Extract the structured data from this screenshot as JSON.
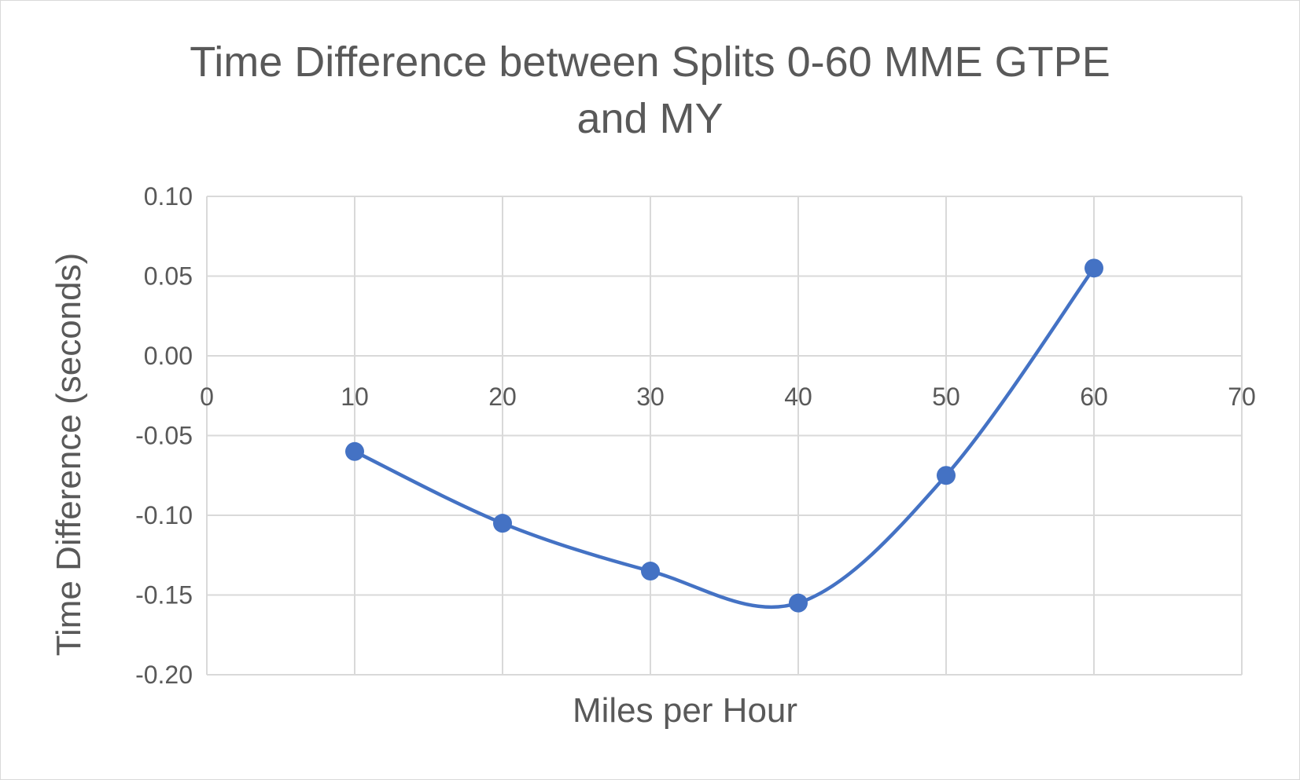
{
  "chart_data": {
    "type": "scatter",
    "title_lines": [
      "Time Difference between Splits 0-60 MME GTPE",
      "and MY"
    ],
    "xlabel": "Miles per Hour",
    "ylabel": "Time Difference (seconds)",
    "xlim": [
      0,
      70
    ],
    "ylim": [
      -0.2,
      0.1
    ],
    "x_ticks": [
      "0",
      "10",
      "20",
      "30",
      "40",
      "50",
      "60",
      "70"
    ],
    "y_ticks": [
      "0.10",
      "0.05",
      "0.00",
      "-0.05",
      "-0.10",
      "-0.15",
      "-0.20"
    ],
    "grid": true,
    "smooth_line": true,
    "legend": "none",
    "series": [
      {
        "color": "#4472c4",
        "points": [
          {
            "x": 10,
            "y": -0.06
          },
          {
            "x": 20,
            "y": -0.105
          },
          {
            "x": 30,
            "y": -0.135
          },
          {
            "x": 40,
            "y": -0.155
          },
          {
            "x": 50,
            "y": -0.075
          },
          {
            "x": 60,
            "y": 0.055
          }
        ]
      }
    ]
  }
}
